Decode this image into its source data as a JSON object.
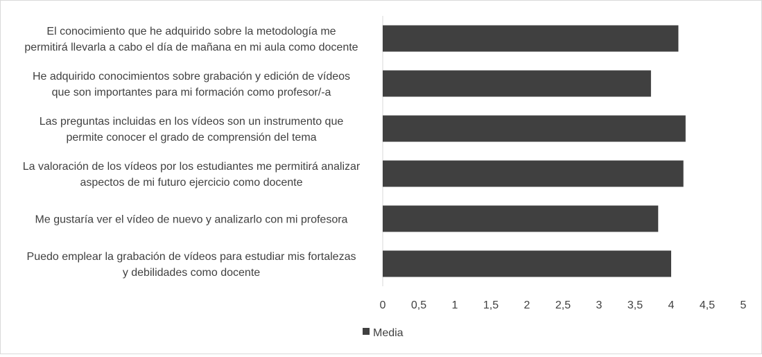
{
  "chart_data": {
    "type": "bar",
    "orientation": "horizontal",
    "categories": [
      [
        "El conocimiento que he adquirido sobre la metodología me",
        "permitirá llevarla a cabo el día de mañana en mi aula como docente"
      ],
      [
        "He adquirido conocimientos sobre grabación y edición de vídeos",
        "que son importantes para mi formación como profesor/-a"
      ],
      [
        "Las preguntas incluidas en los vídeos son un instrumento que",
        "permite conocer el grado de comprensión del tema"
      ],
      [
        "La valoración de los vídeos por los estudiantes me permitirá analizar",
        "aspectos de mi futuro ejercicio como docente"
      ],
      [
        "Me gustaría ver el vídeo de nuevo y analizarlo con mi profesora"
      ],
      [
        "Puedo emplear la grabación de vídeos para estudiar mis fortalezas",
        "y debilidades como docente"
      ]
    ],
    "series": [
      {
        "name": "Media",
        "values": [
          4.1,
          3.72,
          4.2,
          4.17,
          3.82,
          4.0
        ],
        "color": "#404040"
      }
    ],
    "xlim": [
      0,
      5
    ],
    "x_ticks": [
      "0",
      "0,5",
      "1",
      "1,5",
      "2",
      "2,5",
      "3",
      "3,5",
      "4",
      "4,5",
      "5"
    ],
    "x_tick_values": [
      0,
      0.5,
      1,
      1.5,
      2,
      2.5,
      3,
      3.5,
      4,
      4.5,
      5
    ],
    "grid": false,
    "legend_position": "bottom"
  }
}
